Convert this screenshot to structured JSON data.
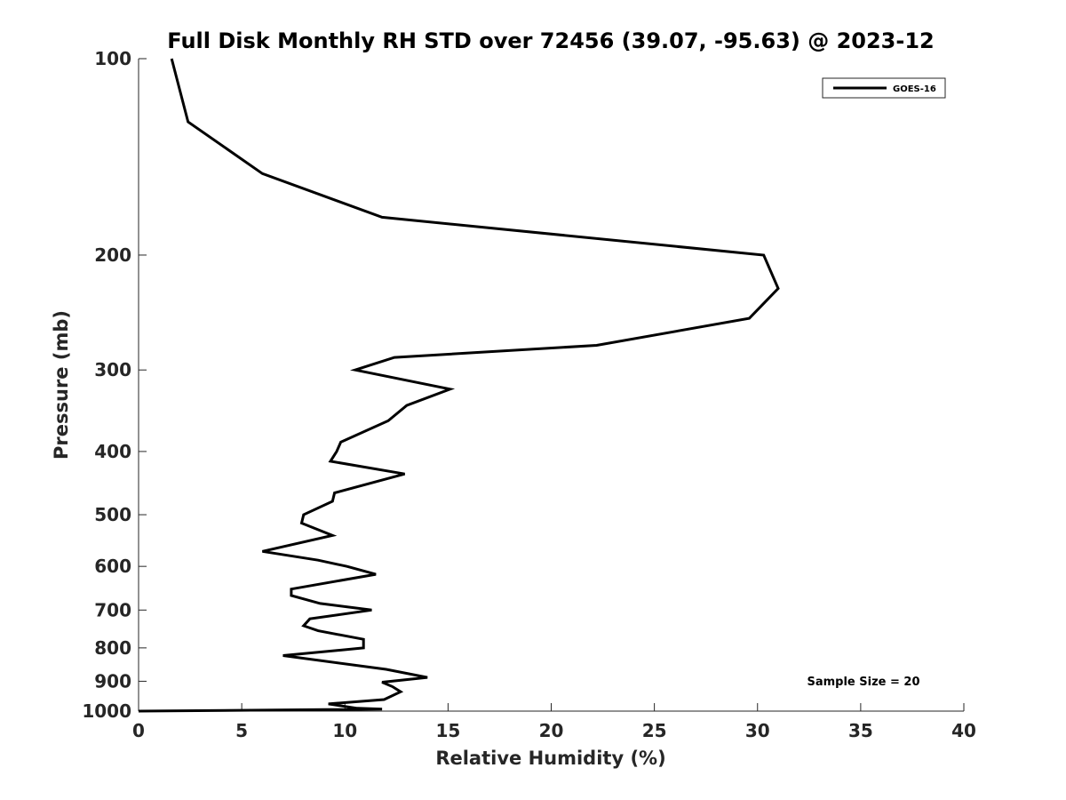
{
  "chart_data": {
    "type": "line",
    "title": "Full Disk Monthly RH STD over 72456 (39.07, -95.63) @ 2023-12",
    "xlabel": "Relative Humidity (%)",
    "ylabel": "Pressure (mb)",
    "xlim": [
      0,
      40
    ],
    "ylim": [
      100,
      1000
    ],
    "y_scale": "log",
    "y_reversed": true,
    "x_ticks": [
      "0",
      "5",
      "10",
      "15",
      "20",
      "25",
      "30",
      "35",
      "40"
    ],
    "y_ticks": [
      "100",
      "200",
      "300",
      "400",
      "500",
      "600",
      "700",
      "800",
      "900",
      "1000"
    ],
    "grid": false,
    "legend_position": "top-right",
    "series_color": "#000000",
    "series": [
      {
        "name": "GOES-16",
        "points": [
          [
            1.6,
            100
          ],
          [
            2.4,
            125
          ],
          [
            6.0,
            150
          ],
          [
            11.8,
            175
          ],
          [
            30.3,
            200
          ],
          [
            31.0,
            225
          ],
          [
            29.6,
            250
          ],
          [
            22.2,
            275
          ],
          [
            12.4,
            287
          ],
          [
            10.5,
            300
          ],
          [
            15.1,
            321
          ],
          [
            13.0,
            340
          ],
          [
            12.1,
            359
          ],
          [
            9.8,
            387
          ],
          [
            9.6,
            400
          ],
          [
            9.3,
            414
          ],
          [
            12.9,
            433
          ],
          [
            9.5,
            463
          ],
          [
            9.4,
            477
          ],
          [
            8.0,
            500
          ],
          [
            7.9,
            515
          ],
          [
            9.4,
            538
          ],
          [
            6.0,
            569
          ],
          [
            8.7,
            587
          ],
          [
            10.1,
            600
          ],
          [
            11.5,
            617
          ],
          [
            7.4,
            650
          ],
          [
            7.4,
            665
          ],
          [
            8.8,
            684
          ],
          [
            11.3,
            700
          ],
          [
            8.3,
            722
          ],
          [
            8.0,
            740
          ],
          [
            8.7,
            753
          ],
          [
            10.9,
            776
          ],
          [
            10.9,
            800
          ],
          [
            7.0,
            822
          ],
          [
            12.0,
            863
          ],
          [
            14.0,
            888
          ],
          [
            11.8,
            903
          ],
          [
            12.3,
            917
          ],
          [
            12.7,
            934
          ],
          [
            11.9,
            960
          ],
          [
            9.2,
            975
          ],
          [
            10.6,
            990
          ],
          [
            11.8,
            993
          ],
          [
            0.0,
            1000
          ]
        ]
      }
    ],
    "annotations": [
      "Sample Size = 20"
    ]
  }
}
